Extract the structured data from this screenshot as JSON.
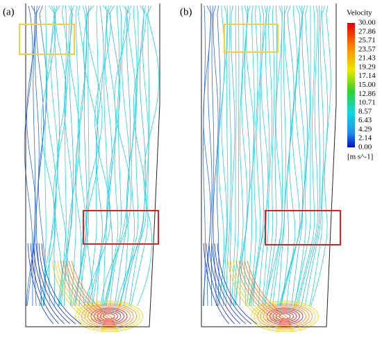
{
  "panels": [
    {
      "label": "(a)"
    },
    {
      "label": "(b)"
    }
  ],
  "colorbar": {
    "title": "Velocity",
    "ticks": [
      "30.00",
      "27.86",
      "25.71",
      "23.57",
      "21.43",
      "19.29",
      "17.14",
      "15.00",
      "12.86",
      "10.71",
      "8.57",
      "6.43",
      "4.29",
      "2.14",
      "0.00"
    ],
    "unit": "[m s^-1]"
  }
}
